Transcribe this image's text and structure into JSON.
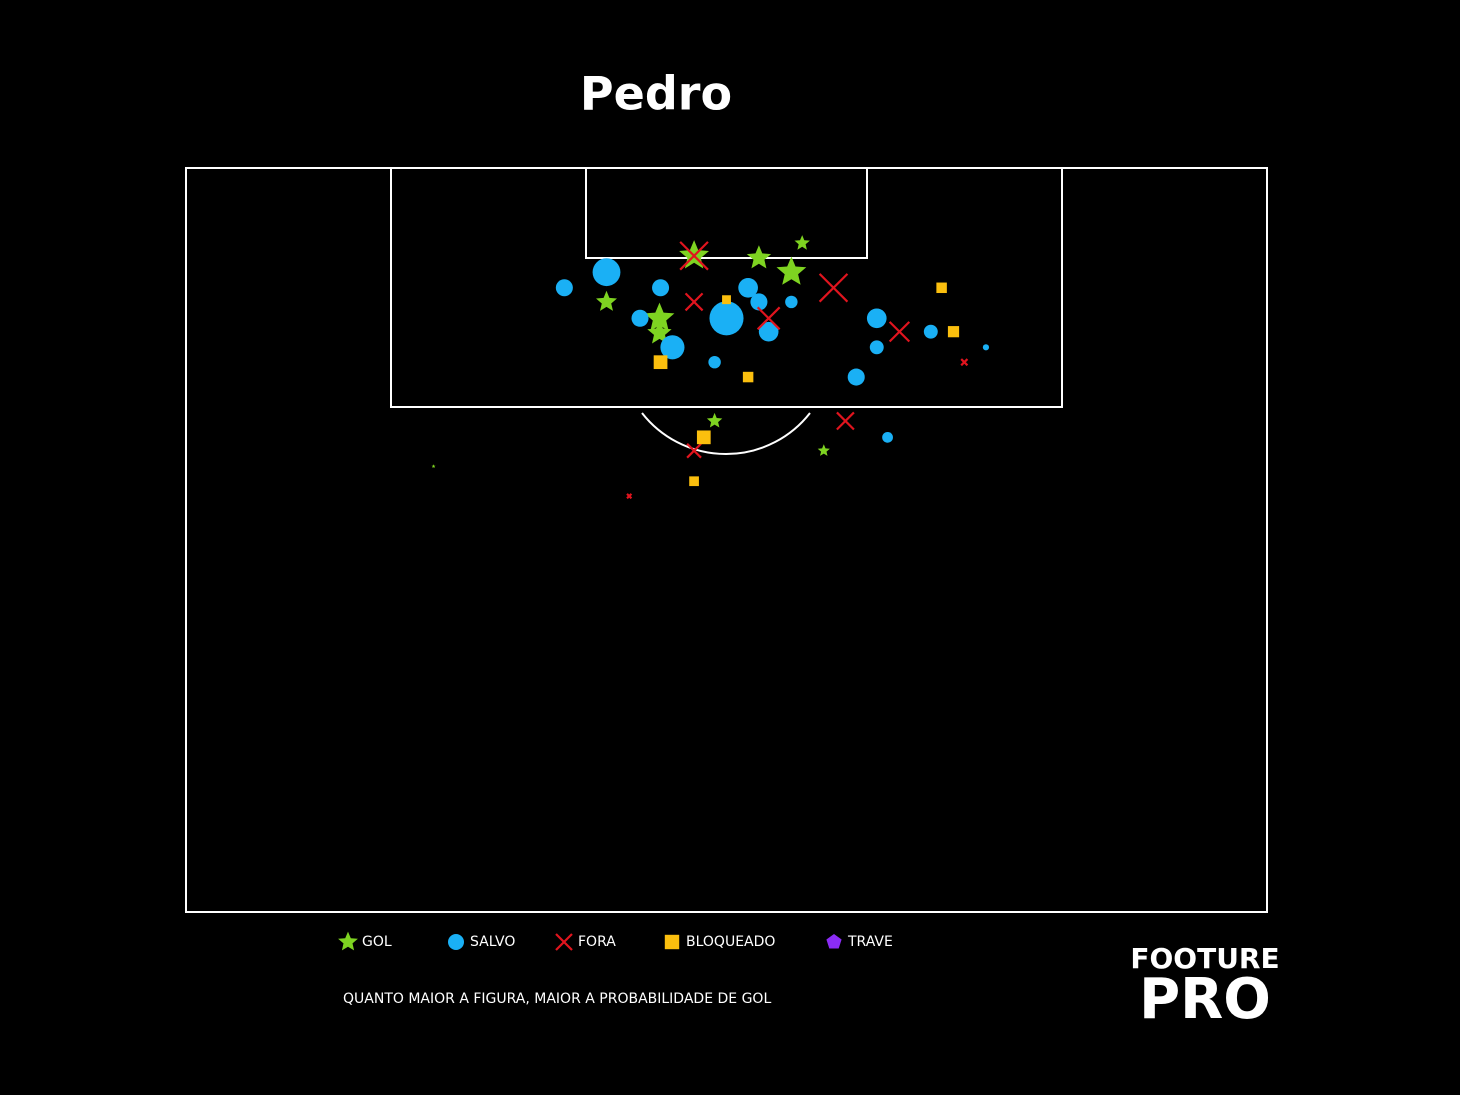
{
  "chart_data": {
    "type": "shotmap",
    "title": "Pedro",
    "xlim": [
      0,
      100
    ],
    "ylim": [
      0,
      100
    ],
    "note": "QUANTO MAIOR A FIGURA, MAIOR A PROBABILIDADE DE GOL",
    "logo": {
      "line1": "FOOTURE",
      "line2": "PRO"
    },
    "series": [
      {
        "name": "GOL",
        "marker": "star",
        "color": "#7ed321",
        "x": [
          47.0,
          53.0,
          57.0,
          56.0,
          38.9,
          43.8,
          43.8,
          48.9,
          59.0,
          22.9
        ],
        "y": [
          11.8,
          12.1,
          10.1,
          14.0,
          18.0,
          20.2,
          22.2,
          34.0,
          38.0,
          40.1
        ],
        "size": [
          0.3,
          0.2,
          0.08,
          0.3,
          0.15,
          0.3,
          0.2,
          0.08,
          0.05,
          0.005
        ]
      },
      {
        "name": "SALVO",
        "marker": "circle",
        "color": "#1ab0f5",
        "x": [
          38.9,
          35.0,
          43.9,
          52.0,
          53.0,
          56.0,
          42.0,
          50.0,
          53.9,
          63.9,
          45.0,
          63.9,
          68.9,
          48.9,
          62.0,
          64.9,
          74.0
        ],
        "y": [
          14.0,
          16.1,
          16.1,
          16.1,
          18.0,
          18.0,
          20.2,
          20.2,
          22.0,
          20.2,
          24.1,
          24.1,
          22.0,
          26.1,
          28.1,
          36.2,
          24.1
        ],
        "size": [
          0.4,
          0.15,
          0.15,
          0.2,
          0.15,
          0.08,
          0.15,
          0.6,
          0.2,
          0.2,
          0.3,
          0.1,
          0.1,
          0.08,
          0.15,
          0.06,
          0.02
        ]
      },
      {
        "name": "FORA",
        "marker": "x",
        "color": "#e0141e",
        "x": [
          47.0,
          47.0,
          59.9,
          53.9,
          66.0,
          61.0,
          47.0,
          72.0,
          41.0
        ],
        "y": [
          11.8,
          18.0,
          16.1,
          20.2,
          22.0,
          34.0,
          38.0,
          26.1,
          44.1
        ],
        "size": [
          0.4,
          0.15,
          0.4,
          0.25,
          0.2,
          0.15,
          0.1,
          0.02,
          0.01
        ]
      },
      {
        "name": "BLOQUEADO",
        "marker": "square",
        "color": "#fbbf0e",
        "x": [
          50.0,
          69.9,
          71.0,
          43.9,
          52.0,
          47.9,
          47.0
        ],
        "y": [
          17.7,
          16.1,
          22.0,
          26.1,
          28.1,
          36.2,
          42.1
        ],
        "size": [
          0.05,
          0.07,
          0.08,
          0.12,
          0.07,
          0.12,
          0.06
        ]
      },
      {
        "name": "TRAVE",
        "marker": "pentagon",
        "color": "#8b2cf5",
        "x": [],
        "y": [],
        "size": []
      }
    ]
  }
}
